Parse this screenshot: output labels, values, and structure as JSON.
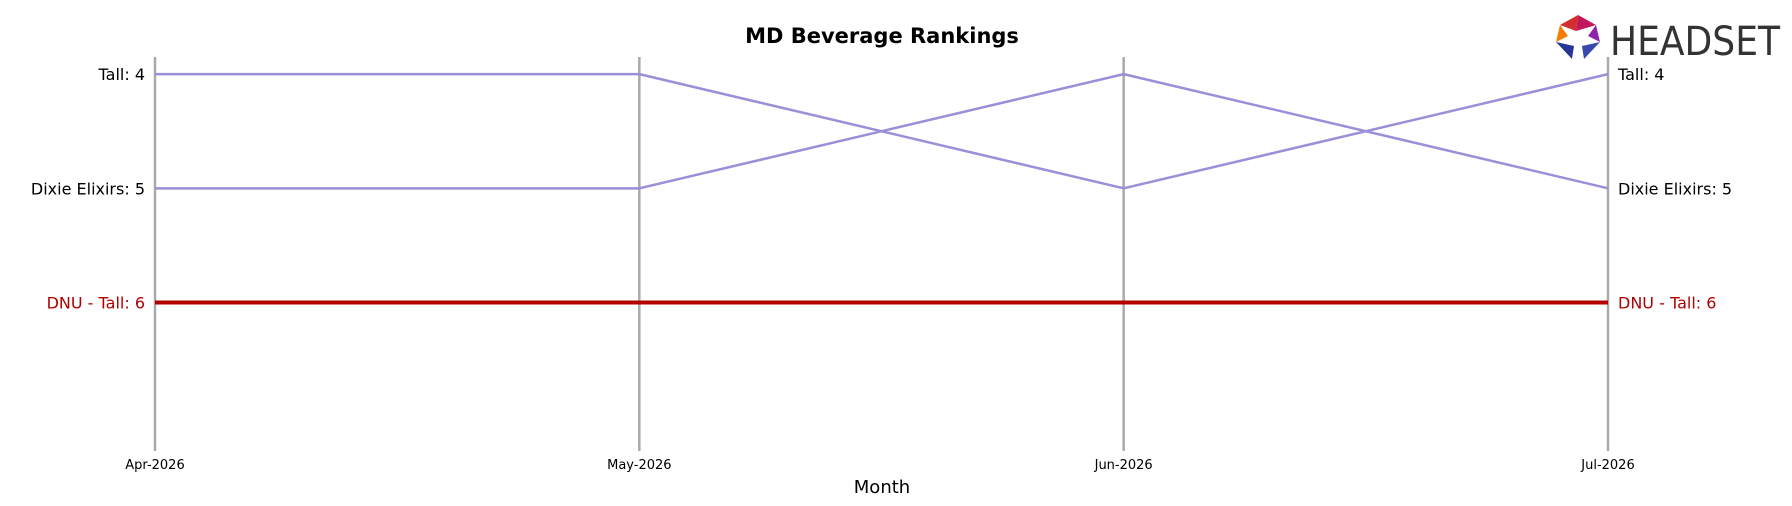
{
  "chart_data": {
    "type": "line",
    "title": "MD Beverage Rankings",
    "xlabel": "Month",
    "ylabel": "",
    "categories": [
      "Apr-2026",
      "May-2026",
      "Jun-2026",
      "Jul-2026"
    ],
    "y_axis": "rank",
    "y_inverted": true,
    "ylim": [
      3.85,
      7.3
    ],
    "grid": "vertical lines at each month",
    "series": [
      {
        "name": "Tall",
        "values": [
          4,
          4,
          5,
          4
        ],
        "color": "#9b8fd8",
        "highlight": false,
        "start_label": "Tall: 4",
        "end_label": "Tall: 4"
      },
      {
        "name": "Dixie Elixirs",
        "values": [
          5,
          5,
          4,
          5
        ],
        "color": "#9b8fd8",
        "highlight": false,
        "start_label": "Dixie Elixirs: 5",
        "end_label": "Dixie Elixirs: 5"
      },
      {
        "name": "DNU - Tall",
        "values": [
          6,
          6,
          6,
          6
        ],
        "color": "#b00000",
        "highlight": true,
        "start_label": "DNU - Tall: 6",
        "end_label": "DNU - Tall: 6"
      }
    ]
  },
  "logo": {
    "text": "HEADSET",
    "icon": "headset-hexagon-logo-icon"
  }
}
